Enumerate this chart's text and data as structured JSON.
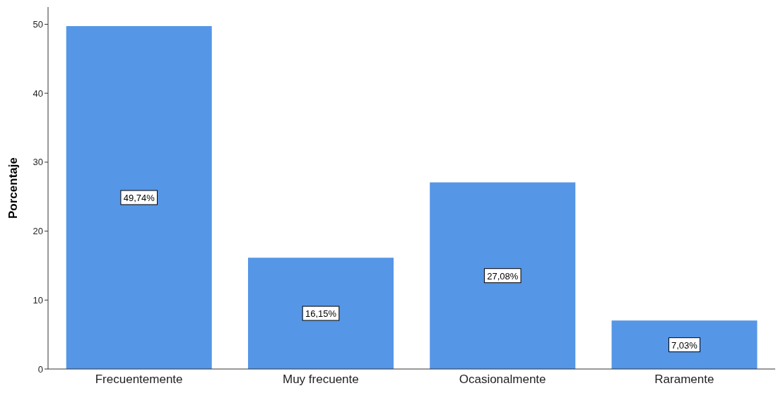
{
  "chart_data": {
    "type": "bar",
    "categories": [
      "Frecuentemente",
      "Muy frecuente",
      "Ocasionalmente",
      "Raramente"
    ],
    "values": [
      49.74,
      16.15,
      27.08,
      7.03
    ],
    "value_labels": [
      "49,74%",
      "16,15%",
      "27,08%",
      "7,03%"
    ],
    "color": "#5596e6",
    "ylabel": "Porcentaje",
    "ylim": [
      0,
      52.5
    ],
    "yticks": [
      0,
      10,
      20,
      30,
      40,
      50
    ],
    "grid": false,
    "legend": false
  }
}
